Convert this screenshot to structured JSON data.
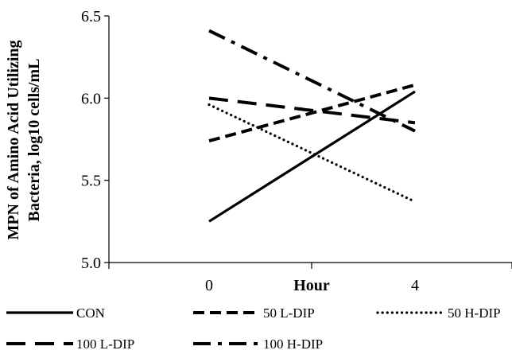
{
  "chart_data": {
    "type": "line",
    "title": "",
    "xlabel": "Hour",
    "ylabel_lines": [
      "MPN of Amino Acid Utilizing",
      "Bacteria, log10 cells/mL"
    ],
    "x": [
      "0",
      "4"
    ],
    "ylim": [
      5.0,
      6.5
    ],
    "yticks": [
      "5.0",
      "5.5",
      "6.0",
      "6.5"
    ],
    "grid": false,
    "legend_position": "bottom",
    "series": [
      {
        "name": "CON",
        "values": [
          5.25,
          6.04
        ],
        "style": "solid",
        "color": "#000000"
      },
      {
        "name": "50 L-DIP",
        "values": [
          5.74,
          6.08
        ],
        "style": "dash",
        "color": "#000000"
      },
      {
        "name": "50 H-DIP",
        "values": [
          5.96,
          5.37
        ],
        "style": "dot",
        "color": "#000000"
      },
      {
        "name": "100 L-DIP",
        "values": [
          6.0,
          5.85
        ],
        "style": "longdash",
        "color": "#000000"
      },
      {
        "name": "100 H-DIP",
        "values": [
          6.41,
          5.8
        ],
        "style": "dashdot",
        "color": "#000000"
      }
    ]
  }
}
